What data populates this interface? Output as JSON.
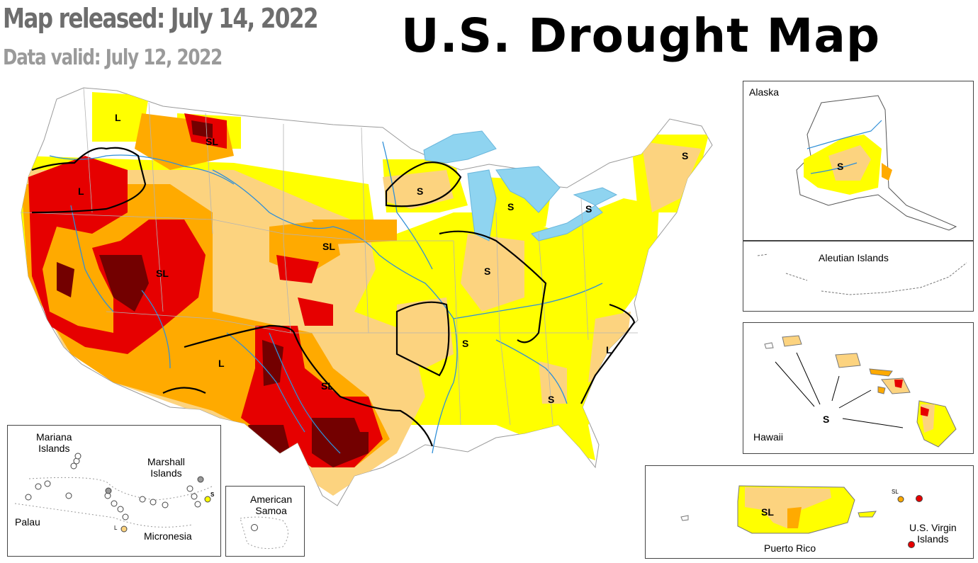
{
  "header": {
    "map_released": "Map released: July 14, 2022",
    "data_valid": "Data valid: July 12, 2022",
    "title": "U.S. Drought Map"
  },
  "colors": {
    "D0_abnormally_dry": "#ffff00",
    "D1_moderate": "#fcd37f",
    "D2_severe": "#ffaa00",
    "D3_extreme": "#e60000",
    "D4_exceptional": "#730000",
    "water": "#8fd4f0",
    "rivers": "#2f8fd8",
    "boundaries": "#b4b4b4",
    "impact_lines": "#000000"
  },
  "conus_impact_labels": [
    "L",
    "SL",
    "L",
    "S",
    "SL",
    "SL",
    "S",
    "S",
    "S",
    "S",
    "S",
    "L",
    "L",
    "SL",
    "S"
  ],
  "alaska": {
    "name": "Alaska",
    "impact": "S"
  },
  "aleutian": {
    "name": "Aleutian Islands"
  },
  "hawaii": {
    "name": "Hawaii",
    "impact": "S"
  },
  "puerto_rico": {
    "name": "Puerto Rico",
    "impact": "SL"
  },
  "usvi": {
    "name_line1": "U.S. Virgin",
    "name_line2": "Islands",
    "impact": "SL"
  },
  "pacific": {
    "mariana_line1": "Mariana",
    "mariana_line2": "Islands",
    "marshall_line1": "Marshall",
    "marshall_line2": "Islands",
    "palau": "Palau",
    "micronesia": "Micronesia",
    "impact_s": "S",
    "impact_l": "L"
  },
  "samoa": {
    "name_line1": "American",
    "name_line2": "Samoa"
  }
}
